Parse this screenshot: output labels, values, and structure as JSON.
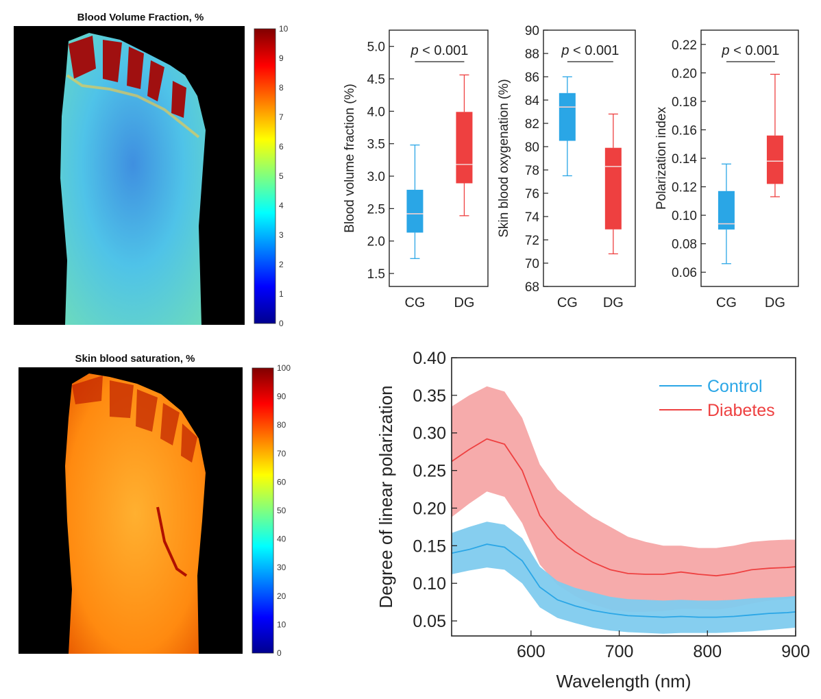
{
  "heatmaps": [
    {
      "title": "Blood Volume Fraction, %",
      "colorbar_ticks": [
        "10",
        "9",
        "8",
        "7",
        "6",
        "5",
        "4",
        "3",
        "2",
        "1",
        "0"
      ],
      "scale": [
        0,
        10
      ],
      "colormap": "jet"
    },
    {
      "title": "Skin blood saturation, %",
      "colorbar_ticks": [
        "100",
        "90",
        "80",
        "70",
        "60",
        "50",
        "40",
        "30",
        "20",
        "10",
        "0"
      ],
      "scale": [
        0,
        100
      ],
      "colormap": "jet"
    }
  ],
  "colors": {
    "control": "#2aa6e6",
    "diabetes": "#ee4040",
    "control_band": "#7fcbee",
    "diabetes_band": "#f5a6a6"
  },
  "chart_data": [
    {
      "type": "box",
      "categories": [
        "CG",
        "DG"
      ],
      "ylabel": "Blood volume fraction (%)",
      "ylim": [
        1.3,
        5.25
      ],
      "yticks": [
        "1.5",
        "2.0",
        "2.5",
        "3.0",
        "3.5",
        "4.0",
        "4.5",
        "5.0"
      ],
      "annotation": "p < 0.001",
      "annotation_italic": "p",
      "annotation_rest": " < 0.001",
      "boxes": [
        {
          "whisker_low": 1.73,
          "q1": 2.13,
          "median": 2.42,
          "q3": 2.79,
          "whisker_high": 3.48
        },
        {
          "whisker_low": 2.39,
          "q1": 2.89,
          "median": 3.18,
          "q3": 3.99,
          "whisker_high": 4.56
        }
      ]
    },
    {
      "type": "box",
      "categories": [
        "CG",
        "DG"
      ],
      "ylabel": "Skin blood oxygenation (%)",
      "ylim": [
        68,
        90
      ],
      "yticks": [
        "68",
        "70",
        "72",
        "74",
        "76",
        "78",
        "80",
        "82",
        "84",
        "86",
        "88",
        "90"
      ],
      "annotation": "p < 0.001",
      "annotation_italic": "p",
      "annotation_rest": " < 0.001",
      "boxes": [
        {
          "whisker_low": 77.5,
          "q1": 80.5,
          "median": 83.4,
          "q3": 84.6,
          "whisker_high": 86.0
        },
        {
          "whisker_low": 70.8,
          "q1": 72.9,
          "median": 78.3,
          "q3": 79.9,
          "whisker_high": 82.8
        }
      ]
    },
    {
      "type": "box",
      "categories": [
        "CG",
        "DG"
      ],
      "ylabel": "Polarization index",
      "ylim": [
        0.05,
        0.23
      ],
      "yticks": [
        "0.06",
        "0.08",
        "0.10",
        "0.12",
        "0.14",
        "0.16",
        "0.18",
        "0.20",
        "0.22"
      ],
      "annotation": "p < 0.001",
      "annotation_italic": "p",
      "annotation_rest": " < 0.001",
      "boxes": [
        {
          "whisker_low": 0.066,
          "q1": 0.09,
          "median": 0.094,
          "q3": 0.117,
          "whisker_high": 0.136
        },
        {
          "whisker_low": 0.113,
          "q1": 0.122,
          "median": 0.138,
          "q3": 0.156,
          "whisker_high": 0.199
        }
      ]
    },
    {
      "type": "line",
      "xlabel": "Wavelength (nm)",
      "ylabel": "Degree of linear polarization",
      "xlim": [
        510,
        900
      ],
      "ylim": [
        0.03,
        0.4
      ],
      "xticks": [
        "600",
        "700",
        "800",
        "900"
      ],
      "yticks": [
        "0.05",
        "0.10",
        "0.15",
        "0.20",
        "0.25",
        "0.30",
        "0.35",
        "0.40"
      ],
      "legend_position": "top-right",
      "x": [
        510,
        530,
        550,
        570,
        590,
        610,
        630,
        650,
        670,
        690,
        710,
        730,
        750,
        770,
        790,
        810,
        830,
        850,
        870,
        890,
        900
      ],
      "series": [
        {
          "name": "Control",
          "mean": [
            0.14,
            0.145,
            0.152,
            0.148,
            0.13,
            0.095,
            0.078,
            0.07,
            0.064,
            0.06,
            0.057,
            0.056,
            0.055,
            0.056,
            0.055,
            0.055,
            0.056,
            0.058,
            0.06,
            0.061,
            0.062
          ],
          "upper": [
            0.167,
            0.175,
            0.182,
            0.178,
            0.16,
            0.122,
            0.103,
            0.094,
            0.088,
            0.082,
            0.079,
            0.078,
            0.077,
            0.078,
            0.077,
            0.077,
            0.078,
            0.08,
            0.081,
            0.082,
            0.083
          ],
          "lower": [
            0.112,
            0.117,
            0.121,
            0.118,
            0.1,
            0.068,
            0.054,
            0.047,
            0.041,
            0.037,
            0.035,
            0.034,
            0.033,
            0.034,
            0.034,
            0.034,
            0.035,
            0.036,
            0.038,
            0.04,
            0.041
          ]
        },
        {
          "name": "Diabetes",
          "mean": [
            0.262,
            0.278,
            0.292,
            0.285,
            0.25,
            0.19,
            0.16,
            0.142,
            0.128,
            0.118,
            0.113,
            0.112,
            0.112,
            0.115,
            0.112,
            0.11,
            0.113,
            0.118,
            0.12,
            0.121,
            0.122
          ],
          "upper": [
            0.335,
            0.35,
            0.362,
            0.355,
            0.32,
            0.258,
            0.225,
            0.205,
            0.188,
            0.175,
            0.162,
            0.155,
            0.15,
            0.15,
            0.147,
            0.147,
            0.15,
            0.155,
            0.157,
            0.158,
            0.158
          ],
          "lower": [
            0.188,
            0.206,
            0.222,
            0.215,
            0.18,
            0.125,
            0.098,
            0.083,
            0.072,
            0.065,
            0.062,
            0.062,
            0.063,
            0.066,
            0.066,
            0.065,
            0.068,
            0.073,
            0.077,
            0.079,
            0.081
          ]
        }
      ]
    }
  ]
}
